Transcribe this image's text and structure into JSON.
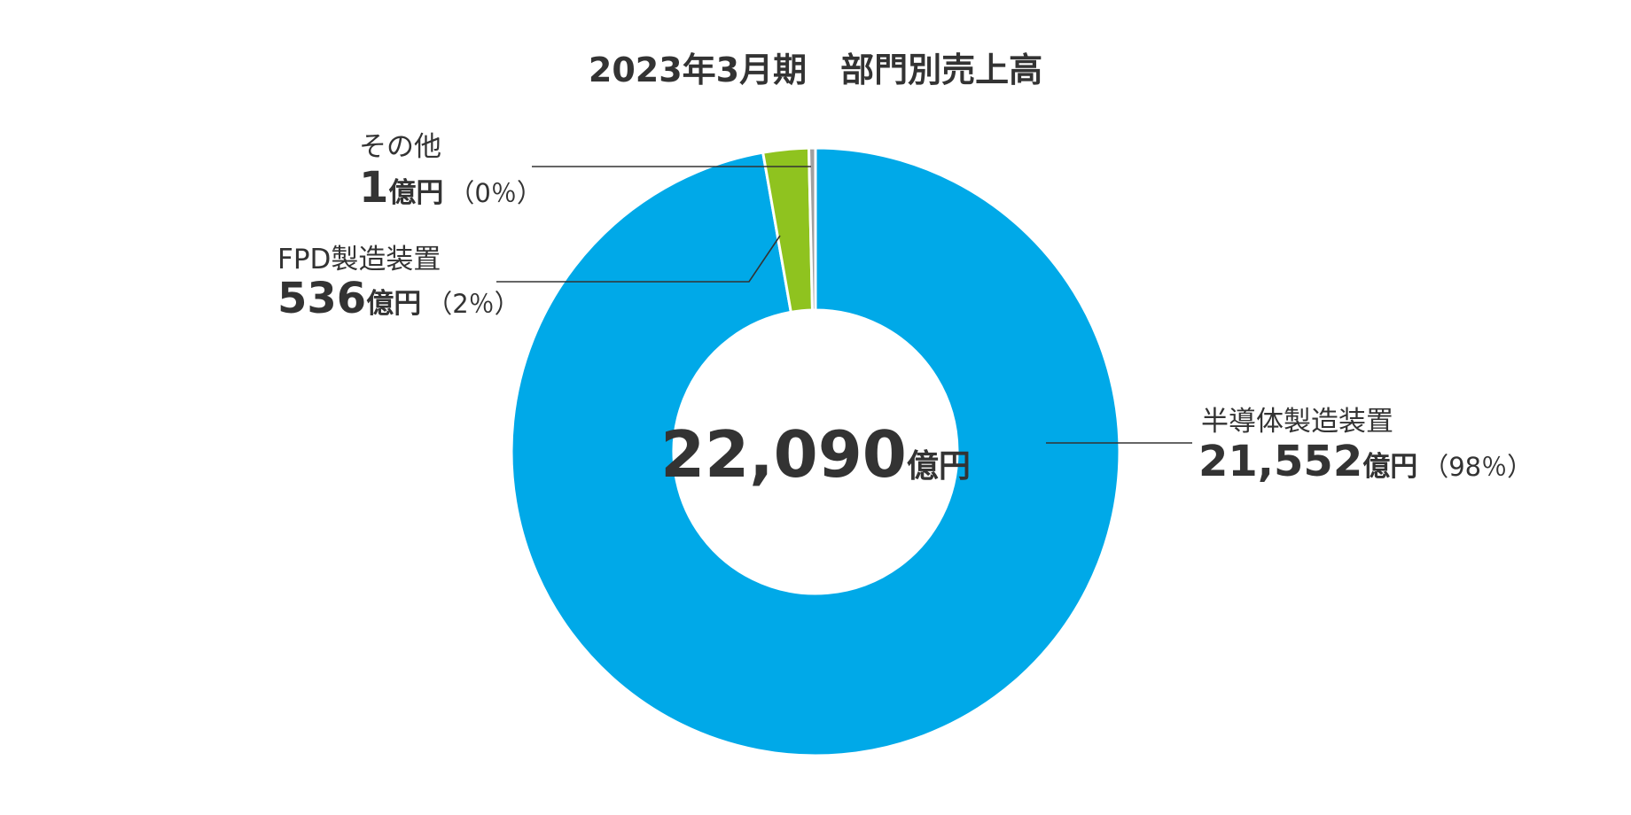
{
  "chart_data": {
    "type": "pie",
    "title": "2023年3月期　部門別売上高",
    "total": {
      "value": "22,090",
      "unit": "億円"
    },
    "slices": [
      {
        "key": "semi",
        "name": "半導体製造装置",
        "value": 21552,
        "value_label": "21,552",
        "unit": "億円",
        "pct_label": "（98％）",
        "color": "#00a9e8"
      },
      {
        "key": "fpd",
        "name": "FPD製造装置",
        "value": 536,
        "value_label": "536",
        "unit": "億円",
        "pct_label": "（2％）",
        "color": "#8fc31f"
      },
      {
        "key": "other",
        "name": "その他",
        "value": 1,
        "value_label": "1",
        "unit": "億円",
        "pct_label": "（0％）",
        "color": "#a0a0a0"
      }
    ],
    "slice_separator_color": "#ffffff",
    "leader_line_color": "#333333"
  }
}
